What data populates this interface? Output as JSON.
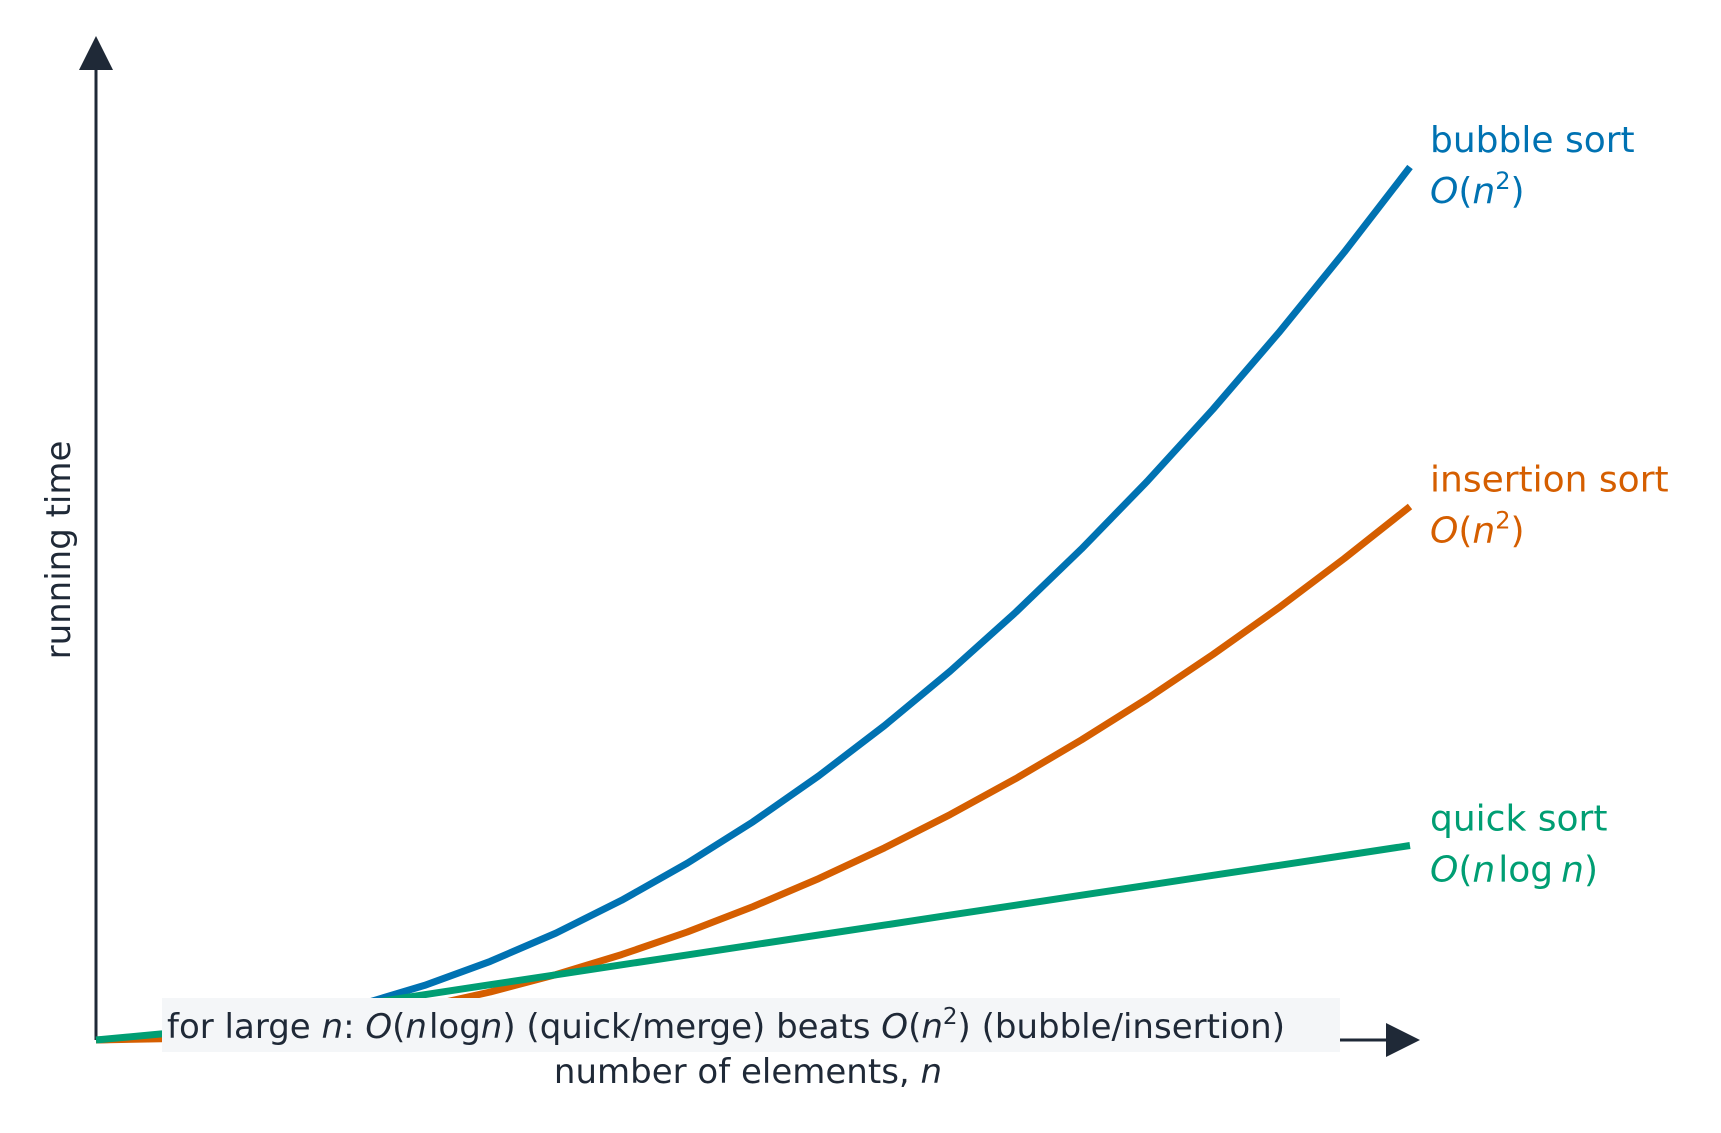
{
  "chart_data": {
    "type": "line",
    "title": "",
    "xlabel": {
      "prefix": "number of elements, ",
      "var": "n"
    },
    "ylabel": "running time",
    "xlim": [
      0,
      20
    ],
    "ylim": [
      0,
      400
    ],
    "grid": false,
    "ticks": "none",
    "x": [
      0,
      1,
      2,
      3,
      4,
      5,
      6,
      7,
      8,
      9,
      10,
      11,
      12,
      13,
      14,
      15,
      16,
      17,
      18,
      19,
      20
    ],
    "series": [
      {
        "key": "bubble",
        "name": "bubble sort",
        "complexity": {
          "pre": "O(",
          "var": "n",
          "sup": "2",
          "post": ")"
        },
        "color": "#0072b2",
        "values": [
          0,
          0.9,
          3.6,
          8.1,
          14.4,
          22.5,
          32.4,
          44.1,
          57.6,
          72.9,
          90,
          108.9,
          129.6,
          152.1,
          176.4,
          202.5,
          230.4,
          260.1,
          291.6,
          324.9,
          360
        ]
      },
      {
        "key": "insertion",
        "name": "insertion sort",
        "complexity": {
          "pre": "O(",
          "var": "n",
          "sup": "2",
          "post": ")"
        },
        "color": "#d55e00",
        "values": [
          0,
          0.55,
          2.2,
          4.95,
          8.8,
          13.75,
          19.8,
          26.95,
          35.2,
          44.55,
          55,
          66.55,
          79.2,
          92.95,
          107.8,
          123.75,
          140.8,
          158.95,
          178.2,
          198.55,
          220
        ]
      },
      {
        "key": "quick",
        "name": "quick sort",
        "complexity": {
          "pre": "O(",
          "var": "n",
          "mid": "log",
          "var2": "n",
          "post": ")"
        },
        "color": "#009e73",
        "values": [
          0,
          2.5,
          6.5,
          10.5,
          14.6,
          18.7,
          22.8,
          26.9,
          31.0,
          35.1,
          39.2,
          43.3,
          47.4,
          51.5,
          55.6,
          59.7,
          63.8,
          67.9,
          72.0,
          76.1,
          80.2
        ]
      }
    ],
    "annotation": {
      "parts": [
        {
          "t": "for large ",
          "i": false
        },
        {
          "t": "n",
          "i": true
        },
        {
          "t": ": ",
          "i": false
        },
        {
          "t": "O",
          "i": true
        },
        {
          "t": "(",
          "i": false
        },
        {
          "t": "n",
          "i": true
        },
        {
          "t": "log",
          "i": false
        },
        {
          "t": "n",
          "i": true
        },
        {
          "t": ") (quick/merge) beats ",
          "i": false
        },
        {
          "t": "O",
          "i": true
        },
        {
          "t": "(",
          "i": false
        },
        {
          "t": "n",
          "i": true
        },
        {
          "t": "2",
          "i": false,
          "sup": true
        },
        {
          "t": ") (bubble/insertion)",
          "i": false
        }
      ],
      "box_color": "#f4f6f8"
    },
    "axis_color": "#1f2937",
    "text_color": "#1f2937"
  }
}
